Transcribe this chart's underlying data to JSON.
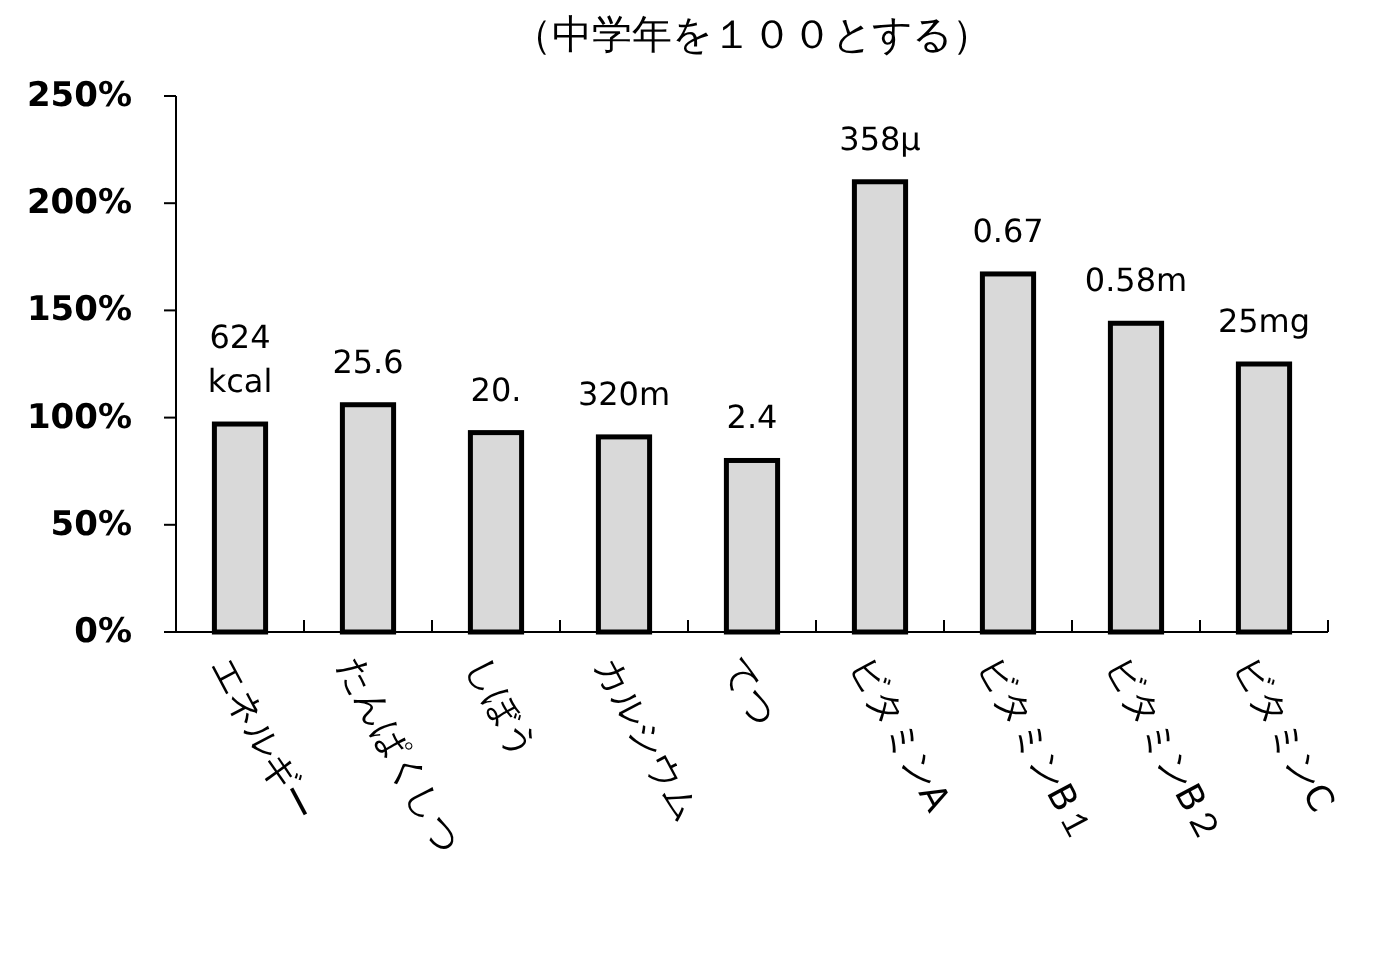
{
  "chart_data": {
    "type": "bar",
    "title": "（中学年を１００とする）",
    "categories": [
      "エネルギー",
      "たんぱくしつ",
      "しぼう",
      "カルシウム",
      "てつ",
      "ビタミンA",
      "ビタミンB１",
      "ビタミンB２",
      "ビタミンC"
    ],
    "values": [
      97,
      106,
      93,
      91,
      80,
      210,
      167,
      144,
      125
    ],
    "annotations": [
      "624\nkcal",
      "25.6",
      "20.",
      "320m",
      "2.4",
      "358μ",
      "0.67",
      "0.58m",
      "25mg"
    ],
    "color": "#d9d9d9",
    "ylim": [
      0,
      250
    ],
    "yticks": [
      {
        "value": 0,
        "label": "0%"
      },
      {
        "value": 50,
        "label": "50%"
      },
      {
        "value": 100,
        "label": "100%"
      },
      {
        "value": 150,
        "label": "150%"
      },
      {
        "value": 200,
        "label": "200%"
      },
      {
        "value": 250,
        "label": "250%"
      }
    ],
    "grid": false
  }
}
